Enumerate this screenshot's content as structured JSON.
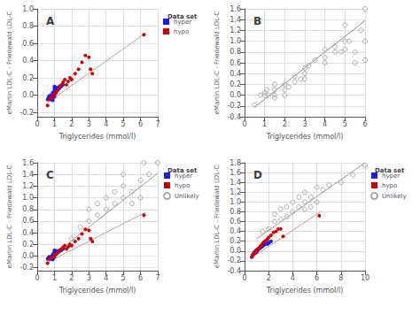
{
  "chart_data": [
    {
      "type": "scatter",
      "title": "A",
      "xlabel": "Triglycerides (mmol/l)",
      "ylabel": "eMartin LDL-C - Friedewald LDL-C",
      "xlim": [
        0,
        7
      ],
      "ylim": [
        -0.25,
        1.0
      ],
      "xticks": [
        0,
        1,
        2,
        3,
        4,
        5,
        6,
        7
      ],
      "yticks": [
        -0.2,
        {
          "value": 0.0,
          "label": "0.0"
        },
        0.2,
        0.4,
        0.6,
        0.8,
        {
          "value": 1.0,
          "label": "1.0"
        }
      ],
      "grid": true,
      "legend": "right",
      "legend_title": "Data set",
      "series": [
        {
          "name": "hyper",
          "type": "scatter",
          "color": "#1a1aff",
          "marker": "circle",
          "x": [
            0.6,
            0.65,
            0.7,
            0.7,
            0.7,
            0.8,
            0.8,
            0.8,
            0.8,
            0.85,
            0.9,
            0.9,
            0.9,
            0.9,
            0.9,
            0.9,
            1.0,
            1.0,
            1.0,
            1.0,
            1.0,
            1.0,
            1.0,
            1.05,
            1.1,
            1.1,
            1.1,
            1.1,
            1.2,
            1.2,
            1.3,
            1.3,
            1.4,
            1.5
          ],
          "values": [
            -0.05,
            -0.03,
            -0.02,
            -0.03,
            -0.01,
            -0.05,
            -0.03,
            -0.01,
            0.0,
            -0.02,
            -0.06,
            -0.04,
            -0.02,
            0.0,
            0.01,
            0.03,
            -0.02,
            0.0,
            0.02,
            0.04,
            0.06,
            0.08,
            0.1,
            0.04,
            0.03,
            0.05,
            0.07,
            0.09,
            0.06,
            0.08,
            0.08,
            0.1,
            0.1,
            0.12
          ]
        },
        {
          "name": "hypo",
          "type": "scatter",
          "color": "#cc0000",
          "marker": "circle",
          "x": [
            0.6,
            0.7,
            0.8,
            0.9,
            1.0,
            1.0,
            1.1,
            1.2,
            1.3,
            1.4,
            1.5,
            1.6,
            1.7,
            1.8,
            1.9,
            2.0,
            2.2,
            2.4,
            2.6,
            2.8,
            3.0,
            3.1,
            3.2,
            6.2
          ],
          "values": [
            -0.12,
            -0.05,
            -0.03,
            -0.02,
            0.0,
            0.02,
            0.04,
            0.06,
            0.1,
            0.12,
            0.15,
            0.18,
            0.12,
            0.16,
            0.2,
            0.18,
            0.25,
            0.3,
            0.38,
            0.46,
            0.44,
            0.3,
            0.25,
            0.7
          ]
        },
        {
          "type": "line",
          "color": "#c0a090",
          "x": [
            0.5,
            6.3
          ],
          "values": [
            -0.1,
            0.72
          ]
        }
      ]
    },
    {
      "type": "scatter",
      "title": "B",
      "xlabel": "Triglycerides (mmol/l)",
      "ylabel": "eMartin LDL-C - Friedewald LDL-C",
      "xlim": [
        0,
        6
      ],
      "ylim": [
        -0.4,
        1.6
      ],
      "xticks": [
        0,
        1,
        2,
        3,
        4,
        5,
        6
      ],
      "yticks": [
        -0.4,
        -0.2,
        {
          "value": 0.0,
          "label": "0.0"
        },
        0.2,
        0.4,
        0.6,
        0.8,
        {
          "value": 1.0,
          "label": "1.0"
        },
        1.2,
        1.4,
        1.6
      ],
      "grid": true,
      "series": [
        {
          "type": "scatter",
          "color": "#aaaaaa",
          "marker": "hollow",
          "x": [
            0.5,
            0.8,
            1.0,
            1.0,
            1.1,
            1.2,
            1.5,
            1.5,
            1.5,
            1.5,
            2.0,
            2.0,
            2.0,
            2.2,
            2.5,
            2.5,
            2.8,
            3.0,
            3.0,
            3.0,
            3.2,
            3.5,
            4.0,
            4.0,
            4.0,
            4.5,
            4.5,
            4.8,
            5.0,
            5.0,
            5.0,
            5.2,
            5.5,
            5.5,
            5.8,
            6.0,
            6.0,
            6.0
          ],
          "values": [
            -0.18,
            0.0,
            0.0,
            0.05,
            0.1,
            0.0,
            -0.05,
            0.0,
            0.1,
            0.2,
            0.0,
            0.1,
            0.2,
            0.15,
            0.25,
            0.35,
            0.3,
            0.3,
            0.4,
            0.5,
            0.55,
            0.65,
            0.6,
            0.7,
            0.85,
            0.8,
            0.9,
            0.8,
            0.85,
            1.0,
            1.3,
            1.0,
            0.8,
            0.6,
            1.2,
            0.65,
            1.0,
            1.6
          ]
        },
        {
          "type": "line",
          "color": "#888888",
          "x": [
            0.5,
            6.0
          ],
          "values": [
            -0.22,
            1.38
          ]
        }
      ]
    },
    {
      "type": "scatter",
      "title": "C",
      "xlabel": "Triglycerides (mmol/l)",
      "ylabel": "eMartin LDL-C - Friedewald LDL-C",
      "xlim": [
        0,
        7
      ],
      "ylim": [
        -0.25,
        1.6
      ],
      "xticks": [
        0,
        1,
        2,
        3,
        4,
        5,
        6,
        7
      ],
      "yticks": [
        -0.2,
        {
          "value": 0.0,
          "label": "0.0"
        },
        0.2,
        0.4,
        0.6,
        0.8,
        {
          "value": 1.0,
          "label": "1.0"
        },
        1.2,
        1.4,
        1.6
      ],
      "grid": true,
      "legend": "right",
      "legend_title": "Data set",
      "series": [
        {
          "name": "hyper",
          "type": "scatter",
          "color": "#1a1aff",
          "marker": "circle",
          "x": [
            0.6,
            0.65,
            0.7,
            0.7,
            0.7,
            0.8,
            0.8,
            0.8,
            0.85,
            0.9,
            0.9,
            0.9,
            0.9,
            0.9,
            1.0,
            1.0,
            1.0,
            1.0,
            1.0,
            1.0,
            1.05,
            1.1,
            1.1,
            1.1,
            1.2,
            1.2,
            1.3,
            1.3,
            1.4,
            1.5
          ],
          "values": [
            -0.05,
            -0.03,
            -0.02,
            -0.03,
            -0.01,
            -0.05,
            -0.03,
            -0.01,
            -0.02,
            -0.06,
            -0.04,
            -0.02,
            0.01,
            0.03,
            -0.02,
            0.02,
            0.04,
            0.06,
            0.08,
            0.1,
            0.04,
            0.03,
            0.07,
            0.09,
            0.06,
            0.08,
            0.08,
            0.1,
            0.1,
            0.12
          ]
        },
        {
          "name": "hypo",
          "type": "scatter",
          "color": "#cc0000",
          "marker": "circle",
          "x": [
            0.6,
            0.7,
            0.8,
            0.9,
            1.0,
            1.0,
            1.1,
            1.2,
            1.3,
            1.4,
            1.5,
            1.6,
            1.7,
            1.8,
            1.9,
            2.0,
            2.2,
            2.4,
            2.6,
            2.8,
            3.0,
            3.1,
            3.2,
            6.2
          ],
          "values": [
            -0.12,
            -0.05,
            -0.03,
            -0.02,
            0.0,
            0.02,
            0.04,
            0.06,
            0.1,
            0.12,
            0.15,
            0.18,
            0.12,
            0.16,
            0.2,
            0.18,
            0.25,
            0.3,
            0.38,
            0.46,
            0.44,
            0.3,
            0.25,
            0.7
          ]
        },
        {
          "name": "Unlikely",
          "type": "scatter",
          "color": "#aaaaaa",
          "marker": "hollow",
          "x": [
            2.0,
            2.5,
            3.0,
            3.0,
            3.5,
            3.5,
            4.0,
            4.0,
            4.5,
            4.5,
            5.0,
            5.0,
            5.0,
            5.5,
            5.5,
            6.0,
            6.0,
            6.2,
            6.5,
            7.0
          ],
          "values": [
            0.3,
            0.5,
            0.6,
            0.8,
            0.7,
            0.9,
            0.8,
            1.0,
            0.9,
            1.1,
            1.0,
            1.2,
            1.4,
            0.9,
            1.1,
            1.0,
            1.3,
            1.6,
            1.4,
            1.6
          ]
        },
        {
          "type": "line",
          "color": "#c0a090",
          "x": [
            0.5,
            6.3
          ],
          "values": [
            -0.12,
            0.75
          ]
        },
        {
          "type": "line",
          "color": "#999999",
          "x": [
            1.5,
            7.0
          ],
          "values": [
            0.15,
            1.42
          ]
        }
      ]
    },
    {
      "type": "scatter",
      "title": "D",
      "xlabel": "Triglycerides (mmol/l)",
      "ylabel": "eMartin LDL-C - Friedewald LDL-C",
      "xlim": [
        0,
        10
      ],
      "ylim": [
        -0.4,
        1.8
      ],
      "xticks": [
        0,
        2,
        4,
        6,
        8,
        10
      ],
      "yticks": [
        -0.4,
        -0.2,
        {
          "value": 0.0,
          "label": "0.0"
        },
        0.2,
        0.4,
        0.6,
        0.8,
        {
          "value": 1.0,
          "label": "1.0"
        },
        1.2,
        1.4,
        1.6,
        1.8
      ],
      "grid": true,
      "legend": "right",
      "legend_title": "Data set",
      "series": [
        {
          "name": "hyper",
          "type": "scatter",
          "color": "#1a1aff",
          "marker": "circle",
          "x": [
            0.6,
            0.65,
            0.7,
            0.7,
            0.8,
            0.8,
            0.9,
            0.9,
            0.9,
            1.0,
            1.0,
            1.0,
            1.05,
            1.1,
            1.1,
            1.2,
            1.3,
            1.4,
            1.5,
            1.5,
            1.6,
            1.7,
            1.8,
            1.9,
            2.0,
            2.1,
            2.2
          ],
          "values": [
            -0.12,
            -0.1,
            -0.08,
            -0.06,
            -0.05,
            -0.03,
            -0.04,
            -0.02,
            0.0,
            -0.02,
            0.0,
            0.02,
            0.01,
            0.02,
            0.04,
            0.04,
            0.06,
            0.08,
            0.1,
            0.12,
            0.12,
            0.14,
            0.16,
            0.14,
            0.16,
            0.18,
            0.2
          ]
        },
        {
          "name": "hypo",
          "type": "scatter",
          "color": "#cc0000",
          "marker": "circle",
          "x": [
            0.6,
            0.7,
            0.8,
            0.9,
            1.0,
            1.0,
            1.1,
            1.2,
            1.3,
            1.4,
            1.5,
            1.6,
            1.7,
            1.8,
            1.9,
            2.0,
            2.2,
            2.4,
            2.6,
            2.8,
            3.0,
            3.2,
            6.2
          ],
          "values": [
            -0.12,
            -0.08,
            -0.05,
            -0.03,
            0.0,
            0.02,
            0.04,
            0.06,
            0.1,
            0.12,
            0.15,
            0.18,
            0.2,
            0.22,
            0.24,
            0.28,
            0.32,
            0.38,
            0.4,
            0.45,
            0.45,
            0.3,
            0.72
          ]
        },
        {
          "name": "Unlikely",
          "type": "scatter",
          "color": "#aaaaaa",
          "marker": "hollow",
          "x": [
            1.5,
            2.0,
            2.5,
            2.5,
            3.0,
            3.0,
            3.5,
            3.5,
            4.0,
            4.0,
            4.5,
            4.5,
            5.0,
            5.0,
            5.0,
            5.5,
            5.5,
            6.0,
            6.0,
            6.5,
            7.0,
            8.0,
            9.0,
            10.0
          ],
          "values": [
            0.4,
            0.45,
            0.6,
            0.75,
            0.65,
            0.85,
            0.7,
            0.9,
            0.8,
            1.0,
            0.9,
            1.1,
            0.85,
            1.0,
            1.2,
            0.9,
            1.1,
            1.0,
            1.3,
            1.25,
            1.35,
            1.4,
            1.55,
            1.75
          ]
        },
        {
          "type": "line",
          "color": "#c0a090",
          "x": [
            0.5,
            6.3
          ],
          "values": [
            -0.15,
            0.8
          ]
        },
        {
          "type": "line",
          "color": "#999999",
          "x": [
            1.0,
            10.0
          ],
          "values": [
            0.25,
            1.8
          ]
        }
      ]
    }
  ]
}
